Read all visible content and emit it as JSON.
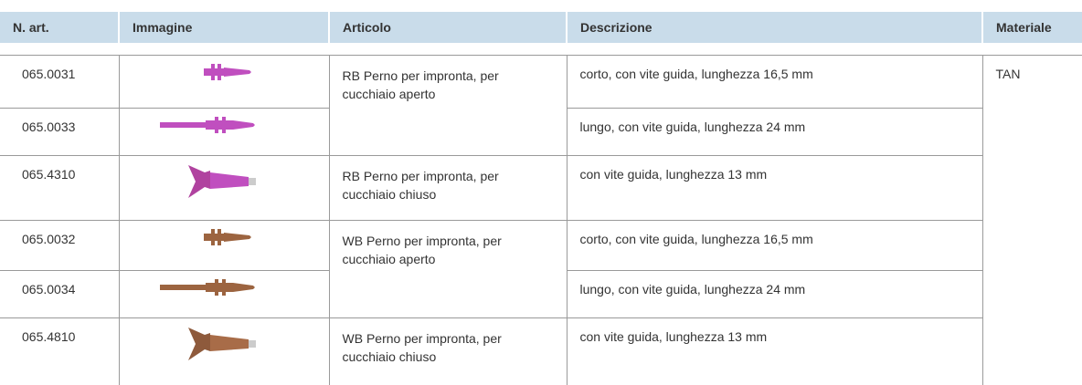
{
  "table": {
    "header": [
      "N. art.",
      "Immagine",
      "Articolo",
      "Descrizione",
      "Materiale"
    ],
    "codes": [
      "065.0031",
      "065.0033",
      "065.4310",
      "065.0032",
      "065.0034",
      "065.4810"
    ],
    "articles": [
      "RB Perno per impronta, per cucchiaio aperto",
      "RB Perno per impronta, per cucchiaio chiuso",
      "WB Perno per impronta, per cucchiaio aperto",
      "WB Perno per impronta, per cucchiaio chiuso"
    ],
    "descriptions": [
      "corto, con vite guida, lunghezza 16,5 mm",
      "lungo, con vite guida, lunghezza 24 mm",
      "con vite guida, lunghezza 13 mm",
      "corto, con vite guida, lunghezza 16,5 mm",
      "lungo, con vite guida, lunghezza 24 mm",
      "con vite guida, lunghezza 13 mm"
    ],
    "material": "TAN"
  }
}
